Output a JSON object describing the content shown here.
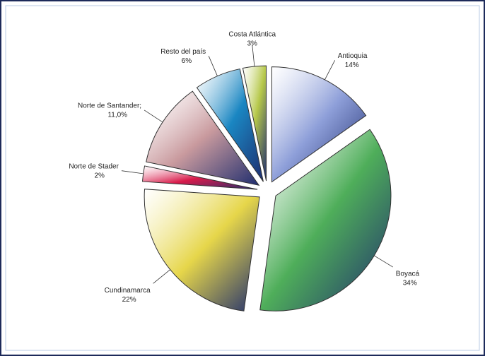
{
  "chart_data": {
    "type": "pie",
    "categories": [
      "Antioquia",
      "Boyacá",
      "Cundinamarca",
      "Norte de Stader",
      "Norte de Santander;",
      "Resto del  país",
      "Costa Atlántica"
    ],
    "values": [
      14,
      34,
      22,
      2,
      11,
      6,
      3
    ],
    "value_labels": [
      "14%",
      "34%",
      "22%",
      "2%",
      "11,0%",
      "6%",
      "3%"
    ],
    "colors": [
      "#8e9fd9",
      "#4fae5a",
      "#e6d64a",
      "#d81b4a",
      "#c99a9e",
      "#1a86c2",
      "#b6c84a"
    ]
  }
}
